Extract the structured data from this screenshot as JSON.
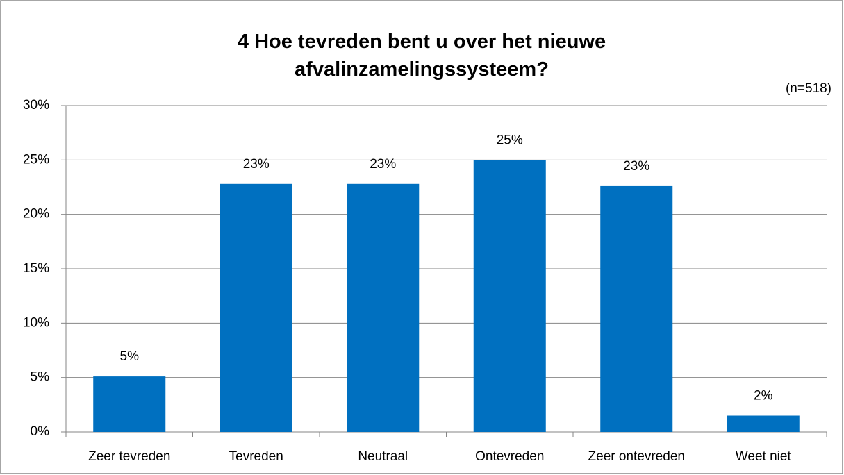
{
  "chart_data": {
    "type": "bar",
    "title": "4 Hoe tevreden bent u over het nieuwe afvalinzamelingssysteem?",
    "annotation": "(n=518)",
    "categories": [
      "Zeer tevreden",
      "Tevreden",
      "Neutraal",
      "Ontevreden",
      "Zeer ontevreden",
      "Weet niet"
    ],
    "values": [
      5.1,
      22.8,
      22.8,
      25.0,
      22.6,
      1.5
    ],
    "value_labels": [
      "5%",
      "23%",
      "23%",
      "25%",
      "23%",
      "2%"
    ],
    "color": "#0070c0",
    "ylim": [
      0,
      30
    ],
    "yticks": [
      {
        "value": 0,
        "label": "0%"
      },
      {
        "value": 5,
        "label": "5%"
      },
      {
        "value": 10,
        "label": "10%"
      },
      {
        "value": 15,
        "label": "15%"
      },
      {
        "value": 20,
        "label": "20%"
      },
      {
        "value": 25,
        "label": "25%"
      },
      {
        "value": 30,
        "label": "30%"
      }
    ],
    "grid": true
  }
}
